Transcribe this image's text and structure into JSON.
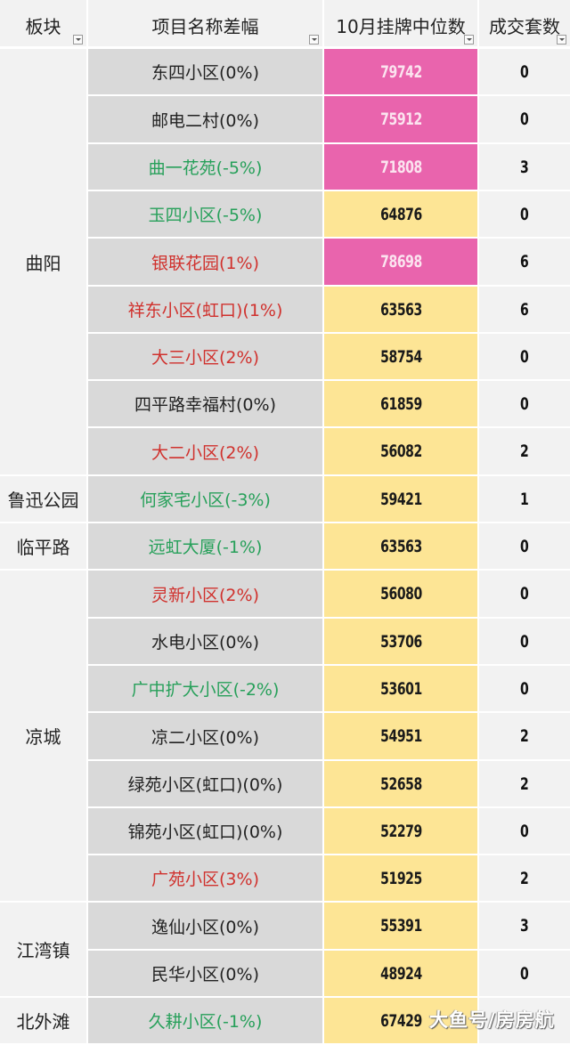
{
  "header": {
    "sector": "板块",
    "name": "项目名称差幅",
    "price": "10月挂牌中位数",
    "deals": "成交套数",
    "filter_icon": "dropdown-filter-icon"
  },
  "colors": {
    "pink_cell": "#e964ad",
    "yellow_cell": "#fde595",
    "name_bg": "#d9d9d9",
    "sector_bg": "#f2f2f2",
    "red_text": "#d0312d",
    "green_text": "#27a05a"
  },
  "sectors": [
    {
      "label": "曲阳",
      "rows": 9
    },
    {
      "label": "鲁迅公园",
      "rows": 1
    },
    {
      "label": "临平路",
      "rows": 1
    },
    {
      "label": "凉城",
      "rows": 7
    },
    {
      "label": "江湾镇",
      "rows": 2
    },
    {
      "label": "北外滩",
      "rows": 1
    }
  ],
  "rows": [
    {
      "name": "东四小区(0%)",
      "color": "black",
      "price": "79742",
      "fill": "pink",
      "deals": "0"
    },
    {
      "name": "邮电二村(0%)",
      "color": "black",
      "price": "75912",
      "fill": "pink",
      "deals": "0"
    },
    {
      "name": "曲一花苑(-5%)",
      "color": "green",
      "price": "71808",
      "fill": "pink",
      "deals": "3"
    },
    {
      "name": "玉四小区(-5%)",
      "color": "green",
      "price": "64876",
      "fill": "yellow",
      "deals": "0"
    },
    {
      "name": "银联花园(1%)",
      "color": "red",
      "price": "78698",
      "fill": "pink",
      "deals": "6"
    },
    {
      "name": "祥东小区(虹口)(1%)",
      "color": "red",
      "price": "63563",
      "fill": "yellow",
      "deals": "6"
    },
    {
      "name": "大三小区(2%)",
      "color": "red",
      "price": "58754",
      "fill": "yellow",
      "deals": "0"
    },
    {
      "name": "四平路幸福村(0%)",
      "color": "black",
      "price": "61859",
      "fill": "yellow",
      "deals": "0"
    },
    {
      "name": "大二小区(2%)",
      "color": "red",
      "price": "56082",
      "fill": "yellow",
      "deals": "2"
    },
    {
      "name": "何家宅小区(-3%)",
      "color": "green",
      "price": "59421",
      "fill": "yellow",
      "deals": "1"
    },
    {
      "name": "远虹大厦(-1%)",
      "color": "green",
      "price": "63563",
      "fill": "yellow",
      "deals": "0"
    },
    {
      "name": "灵新小区(2%)",
      "color": "red",
      "price": "56080",
      "fill": "yellow",
      "deals": "0"
    },
    {
      "name": "水电小区(0%)",
      "color": "black",
      "price": "53706",
      "fill": "yellow",
      "deals": "0"
    },
    {
      "name": "广中扩大小区(-2%)",
      "color": "green",
      "price": "53601",
      "fill": "yellow",
      "deals": "0"
    },
    {
      "name": "凉二小区(0%)",
      "color": "black",
      "price": "54951",
      "fill": "yellow",
      "deals": "2"
    },
    {
      "name": "绿苑小区(虹口)(0%)",
      "color": "black",
      "price": "52658",
      "fill": "yellow",
      "deals": "2"
    },
    {
      "name": "锦苑小区(虹口)(0%)",
      "color": "black",
      "price": "52279",
      "fill": "yellow",
      "deals": "0"
    },
    {
      "name": "广苑小区(3%)",
      "color": "red",
      "price": "51925",
      "fill": "yellow",
      "deals": "2"
    },
    {
      "name": "逸仙小区(0%)",
      "color": "black",
      "price": "55391",
      "fill": "yellow",
      "deals": "3"
    },
    {
      "name": "民华小区(0%)",
      "color": "black",
      "price": "48924",
      "fill": "yellow",
      "deals": "0"
    },
    {
      "name": "久耕小区(-1%)",
      "color": "green",
      "price": "67429",
      "fill": "yellow",
      "deals": ""
    }
  ],
  "watermark": "大鱼号/房房航"
}
